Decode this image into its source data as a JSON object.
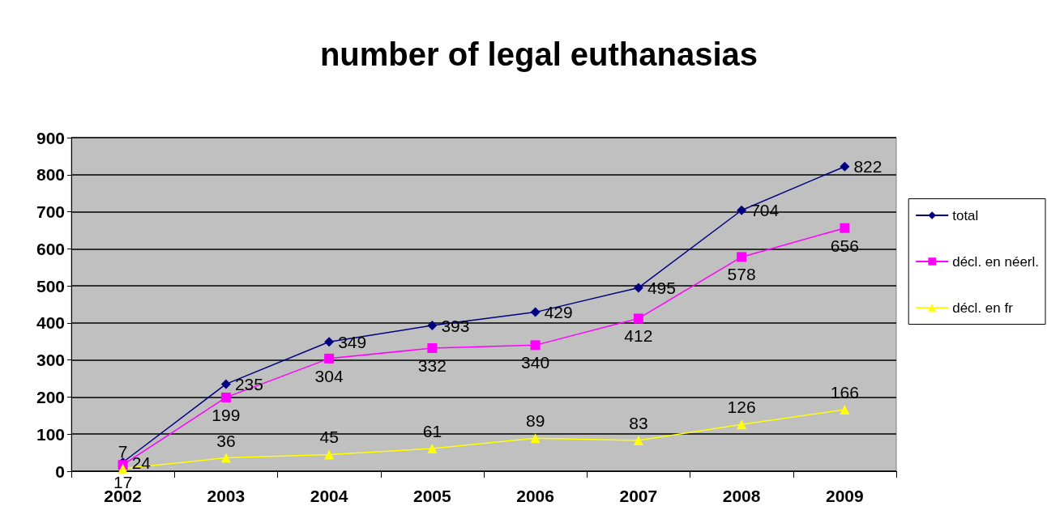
{
  "chart_data": {
    "type": "line",
    "title": "number of legal euthanasias",
    "categories": [
      "2002",
      "2003",
      "2004",
      "2005",
      "2006",
      "2007",
      "2008",
      "2009"
    ],
    "series": [
      {
        "name": "total",
        "color": "#000080",
        "marker": "diamond",
        "values": [
          24,
          235,
          349,
          393,
          429,
          495,
          704,
          822
        ]
      },
      {
        "name": "décl. en néerl.",
        "color": "#ff00ff",
        "marker": "square",
        "values": [
          17,
          199,
          304,
          332,
          340,
          412,
          578,
          656
        ]
      },
      {
        "name": "décl. en fr",
        "color": "#ffff00",
        "marker": "triangle",
        "values": [
          7,
          36,
          45,
          61,
          89,
          83,
          126,
          166
        ]
      }
    ],
    "ylim": [
      0,
      900
    ],
    "yticks": [
      0,
      100,
      200,
      300,
      400,
      500,
      600,
      700,
      800,
      900
    ],
    "grid": "y",
    "legend": "right",
    "data_labels": true
  }
}
